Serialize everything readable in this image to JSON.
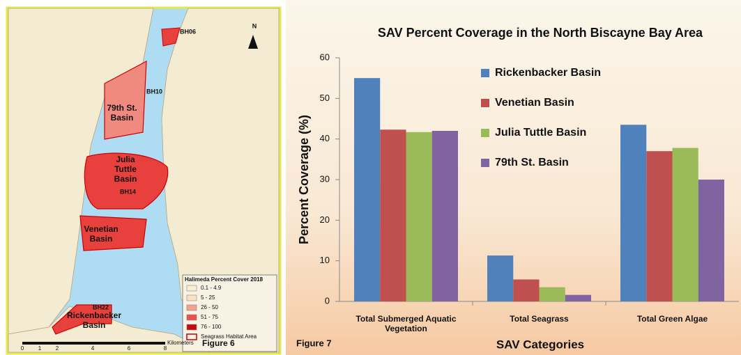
{
  "map": {
    "north": "N",
    "sites": [
      "BH06",
      "BH10",
      "BH14",
      "BH22"
    ],
    "basins": [
      "79th St. Basin",
      "Julia Tuttle Basin",
      "Venetian Basin",
      "Rickenbacker Basin"
    ],
    "legend": {
      "title": "Halimeda Percent Cover 2018",
      "items": [
        {
          "label": "0.1 - 4.9",
          "color": "#f7efcf"
        },
        {
          "label": "5 - 25",
          "color": "#f6e3c2"
        },
        {
          "label": "26 - 50",
          "color": "#f2a18c"
        },
        {
          "label": "51 - 75",
          "color": "#e8504a"
        },
        {
          "label": "76 - 100",
          "color": "#c20c0c"
        },
        {
          "label": "Seagrass Habitat Area",
          "color": "none"
        }
      ]
    },
    "scale": {
      "ticks": [
        "0",
        "1",
        "2",
        "4",
        "6",
        "8"
      ],
      "unit": "Kilometers"
    },
    "figure": "Figure 6"
  },
  "figure": "Figure 7",
  "chart_data": {
    "type": "bar",
    "title": "SAV Percent Coverage in the North Biscayne Bay Area",
    "x_label": "SAV Categories",
    "y_label": "Percent Coverage (%)",
    "categories": [
      "Total Submerged Aquatic Vegetation",
      "Total Seagrass",
      "Total Green Algae"
    ],
    "series": [
      {
        "name": "Rickenbacker Basin",
        "color": "#4f81bd",
        "values": [
          55,
          11.3,
          43.5
        ]
      },
      {
        "name": "Venetian Basin",
        "color": "#c0504d",
        "values": [
          42.3,
          5.4,
          37
        ]
      },
      {
        "name": "Julia Tuttle Basin",
        "color": "#9bbb59",
        "values": [
          41.7,
          3.5,
          37.8
        ]
      },
      {
        "name": "79th St. Basin",
        "color": "#8064a2",
        "values": [
          42,
          1.6,
          30
        ]
      }
    ],
    "ylim": [
      0,
      60
    ],
    "yticks": [
      0,
      10,
      20,
      30,
      40,
      50,
      60
    ],
    "legend": "top",
    "grid": false
  }
}
